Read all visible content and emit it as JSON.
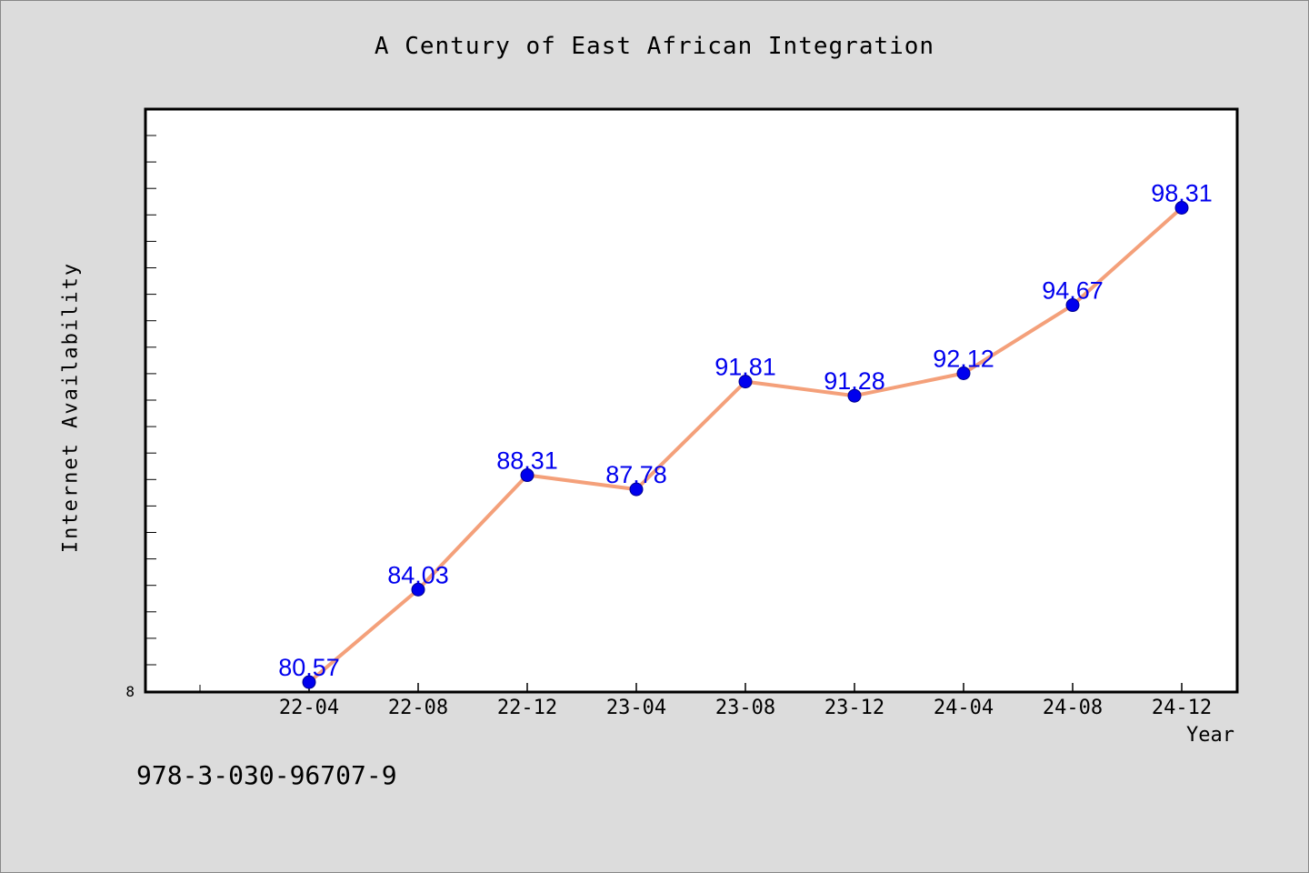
{
  "chart_data": {
    "type": "line",
    "title": "A Century of East African Integration",
    "xlabel": "Year",
    "ylabel": "Internet Availability",
    "categories": [
      "22-04",
      "22-08",
      "22-12",
      "23-04",
      "23-08",
      "23-12",
      "24-04",
      "24-08",
      "24-12"
    ],
    "series": [
      {
        "values": [
          80.57,
          84.03,
          88.31,
          87.78,
          91.81,
          91.28,
          92.12,
          94.67,
          98.31
        ],
        "labels": [
          "80.57",
          "84.03",
          "88.31",
          "87.78",
          "91.81",
          "91.28",
          "92.12",
          "94.67",
          "98.31"
        ],
        "line_color": "#f4a07a",
        "marker_color": "#0000ee"
      }
    ],
    "ytick_labels": [
      "8"
    ],
    "ylim": [
      80.2,
      102.0
    ],
    "label_color": "#0000ee",
    "grid": false
  },
  "footnote": "978-3-030-96707-9"
}
